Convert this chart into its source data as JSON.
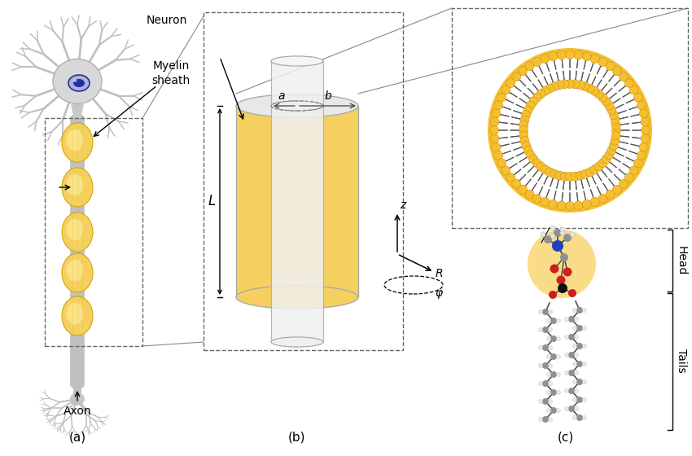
{
  "bg_color": "#ffffff",
  "panel_labels": [
    "(a)",
    "(b)",
    "(c)"
  ],
  "neuron_color": "#c8c8c8",
  "nucleus_outer_color": "#dcdcf0",
  "nucleus_inner_color": "#3030a0",
  "myelin_color": "#f5d060",
  "myelin_edge_color": "#d4a800",
  "axon_color": "#c8c8c8",
  "cylinder_outer_color": "#f5d060",
  "cylinder_inner_color": "#e8e8e8",
  "cylinder_edge_color": "#aaaaaa",
  "lipid_head_color": "#f5c030",
  "lipid_tail_color": "#555555",
  "atom_C_color": "#909090",
  "atom_N_color": "#2040c0",
  "atom_O_color": "#cc2020",
  "atom_H_color": "#e8e8e8",
  "atom_black_color": "#101010",
  "label_neuron": "Neuron",
  "label_myelin": "Myelin\nsheath",
  "label_axon": "Axon",
  "label_head": "Head",
  "label_tails": "Tails",
  "label_a": "a",
  "label_b": "b",
  "label_L": "L",
  "label_R": "R",
  "label_phi": "φ",
  "label_z": "z",
  "dashed_color": "#555555"
}
